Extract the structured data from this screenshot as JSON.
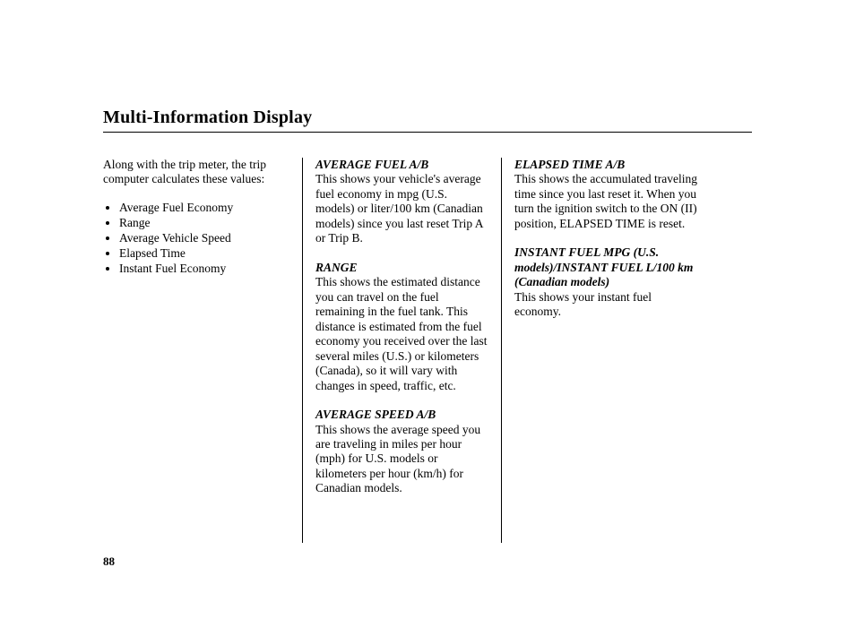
{
  "title": "Multi-Information Display",
  "pageNumber": "88",
  "col1": {
    "intro": "Along with the trip meter, the trip computer calculates these values:",
    "bullets": [
      "Average Fuel Economy",
      "Range",
      "Average Vehicle Speed",
      "Elapsed Time",
      "Instant Fuel Economy"
    ]
  },
  "col2": {
    "s1head": "AVERAGE FUEL A/B",
    "s1body": "This shows your vehicle's average fuel economy in mpg (U.S. models) or liter/100 km (Canadian models) since you last reset Trip A or Trip B.",
    "s2head": "RANGE",
    "s2body": "This shows the estimated distance you can travel on the fuel remaining in the fuel tank. This distance is estimated from the fuel economy you received over the last several miles (U.S.) or kilometers (Canada), so it will vary with changes in speed, traffic, etc.",
    "s3head": "AVERAGE SPEED A/B",
    "s3body": "This shows the average speed you are traveling in miles per hour (mph) for U.S. models or kilometers per hour (km/h) for Canadian models."
  },
  "col3": {
    "s1head": "ELAPSED TIME A/B",
    "s1body": "This shows the accumulated traveling time since you last reset it. When you turn the ignition switch to the ON (II) position, ELAPSED TIME is reset.",
    "s2head": "INSTANT FUEL MPG (U.S. models)/INSTANT FUEL L/100 km (Canadian models)",
    "s2body": "This shows your instant fuel economy."
  }
}
